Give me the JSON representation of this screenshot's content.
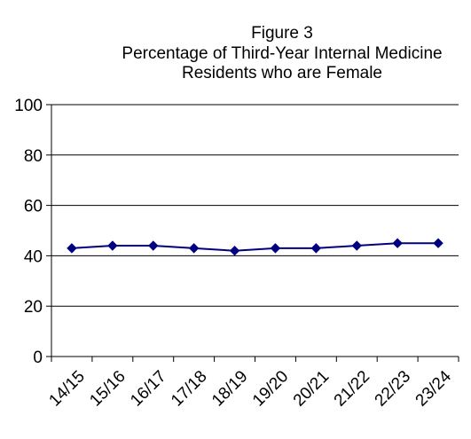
{
  "chart_data": {
    "type": "line",
    "title_lines": [
      "Figure 3",
      "Percentage of Third-Year Internal Medicine",
      "Residents who are Female"
    ],
    "xlabel": "",
    "ylabel": "",
    "categories": [
      "14/15",
      "15/16",
      "16/17",
      "17/18",
      "18/19",
      "19/20",
      "20/21",
      "21/22",
      "22/23",
      "23/24"
    ],
    "series": [
      {
        "values": [
          43,
          44,
          44,
          43,
          42,
          43,
          43,
          44,
          45,
          45
        ]
      }
    ],
    "ylim": [
      0,
      100
    ],
    "yticks": [
      0,
      20,
      40,
      60,
      80,
      100
    ],
    "grid": "horizontal",
    "legend": "none",
    "line_color": "#000080",
    "marker": "diamond"
  }
}
